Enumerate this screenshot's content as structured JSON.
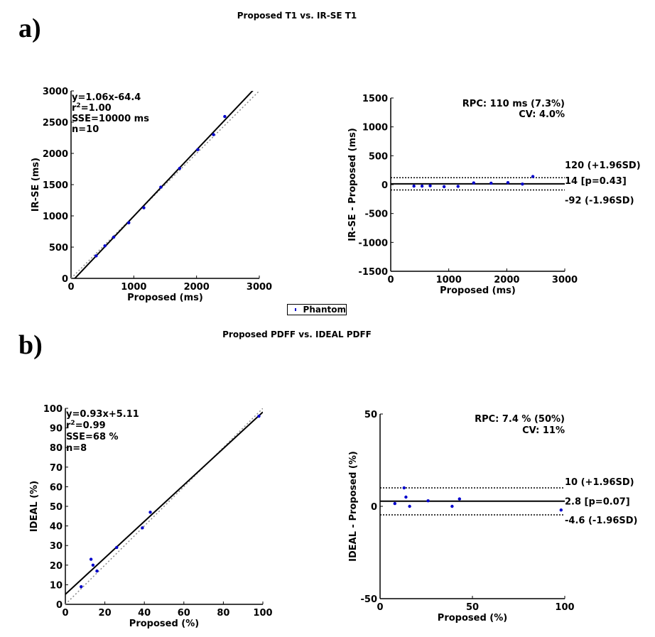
{
  "colors": {
    "point": "#0000cc",
    "line": "#000000",
    "identity": "#888888"
  },
  "panel_labels": [
    "a)",
    "b)"
  ],
  "titles": {
    "a": "Proposed T1 vs. IR-SE T1",
    "b": "Proposed PDFF vs. IDEAL PDFF"
  },
  "legend": {
    "label": "Phantom"
  },
  "chart_data": [
    {
      "id": "a-corr",
      "type": "scatter",
      "xlabel": "Proposed (ms)",
      "ylabel": "IR-SE (ms)",
      "xlim": [
        0,
        3000
      ],
      "ylim": [
        0,
        3000
      ],
      "xticks": [
        0,
        1000,
        2000,
        3000
      ],
      "yticks": [
        0,
        500,
        1000,
        1500,
        2000,
        2500,
        3000
      ],
      "fit": {
        "slope": 1.06,
        "intercept": -64.4
      },
      "identity_line": true,
      "x": [
        400,
        540,
        680,
        920,
        1160,
        1430,
        1730,
        2020,
        2270,
        2450
      ],
      "y": [
        360,
        520,
        660,
        890,
        1130,
        1460,
        1760,
        2060,
        2300,
        2590
      ],
      "stats": [
        "y=1.06x-64.4",
        "r²=1.00",
        "SSE=10000 ms",
        "n=10"
      ]
    },
    {
      "id": "a-ba",
      "type": "scatter",
      "xlabel": "Proposed (ms)",
      "ylabel": "IR-SE - Proposed (ms)",
      "xlim": [
        0,
        3000
      ],
      "ylim": [
        -1500,
        1500
      ],
      "xticks": [
        0,
        1000,
        2000,
        3000
      ],
      "yticks": [
        -1500,
        -1000,
        -500,
        0,
        500,
        1000,
        1500
      ],
      "mean": 14,
      "upper": 120,
      "lower": -92,
      "x": [
        400,
        540,
        680,
        920,
        1160,
        1430,
        1730,
        2020,
        2270,
        2450
      ],
      "y": [
        -25,
        -25,
        -20,
        -35,
        -30,
        30,
        25,
        35,
        10,
        140
      ],
      "stats": [
        "RPC: 110 ms (7.3%)",
        "CV: 4.0%"
      ],
      "line_labels": [
        "120 (+1.96SD)",
        "14 [p=0.43]",
        "-92 (-1.96SD)"
      ]
    },
    {
      "id": "b-corr",
      "type": "scatter",
      "xlabel": "Proposed (%)",
      "ylabel": "IDEAL (%)",
      "xlim": [
        0,
        100
      ],
      "ylim": [
        0,
        100
      ],
      "xticks": [
        0,
        20,
        40,
        60,
        80,
        100
      ],
      "yticks": [
        0,
        10,
        20,
        30,
        40,
        50,
        60,
        70,
        80,
        90,
        100
      ],
      "fit": {
        "slope": 0.93,
        "intercept": 5.11
      },
      "identity_line": true,
      "x": [
        8,
        13,
        14,
        16,
        26,
        39,
        43,
        98
      ],
      "y": [
        9,
        23,
        20,
        17,
        29,
        39,
        47,
        96
      ],
      "stats": [
        "y=0.93x+5.11",
        "r²=0.99",
        "SSE=68 %",
        "n=8"
      ]
    },
    {
      "id": "b-ba",
      "type": "scatter",
      "xlabel": "Proposed (%)",
      "ylabel": "IDEAL - Proposed (%)",
      "xlim": [
        0,
        100
      ],
      "ylim": [
        -50,
        50
      ],
      "xticks": [
        0,
        50,
        100
      ],
      "yticks": [
        -50,
        0,
        50
      ],
      "mean": 2.8,
      "upper": 10,
      "lower": -4.6,
      "x": [
        8,
        13,
        14,
        16,
        26,
        39,
        43,
        98
      ],
      "y": [
        1.5,
        10,
        5,
        0,
        3,
        0,
        4,
        -2
      ],
      "stats": [
        "RPC: 7.4 % (50%)",
        "CV: 11%"
      ],
      "line_labels": [
        "10 (+1.96SD)",
        "2.8 [p=0.07]",
        "-4.6 (-1.96SD)"
      ]
    }
  ]
}
